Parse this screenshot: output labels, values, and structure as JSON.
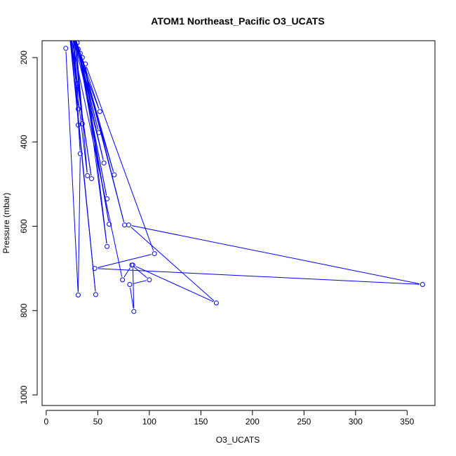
{
  "chart_data": {
    "type": "line",
    "title": "ATOM1 Northeast_Pacific O3_UCATS",
    "xlabel": "O3_UCATS",
    "ylabel": "Pressure (mbar)",
    "xlim": [
      -4,
      377
    ],
    "ylim": [
      1025,
      160
    ],
    "y_inverted": true,
    "xticks": [
      0,
      50,
      100,
      150,
      200,
      250,
      300,
      350
    ],
    "yticks": [
      200,
      400,
      600,
      800,
      1000
    ],
    "grid": false,
    "legend": "none",
    "colors": {
      "series": "#0000ff",
      "axis": "#000000"
    },
    "series": [
      {
        "x": [
          19,
          31,
          33,
          25,
          30,
          31,
          31,
          26,
          35,
          28,
          40,
          22,
          44,
          22,
          48,
          23,
          52,
          25,
          51,
          27,
          56,
          26,
          66,
          30,
          59,
          31,
          61,
          33,
          76,
          35,
          59,
          38,
          105,
          47,
          365,
          80,
          165,
          84,
          85,
          81,
          100,
          83,
          74,
          24
        ],
        "y": [
          178,
          763,
          428,
          110,
          262,
          322,
          360,
          120,
          357,
          140,
          480,
          120,
          487,
          130,
          762,
          140,
          328,
          130,
          378,
          140,
          450,
          150,
          478,
          165,
          535,
          180,
          595,
          190,
          597,
          200,
          648,
          215,
          665,
          700,
          738,
          597,
          782,
          692,
          802,
          738,
          727,
          692,
          727,
          150
        ]
      }
    ]
  }
}
